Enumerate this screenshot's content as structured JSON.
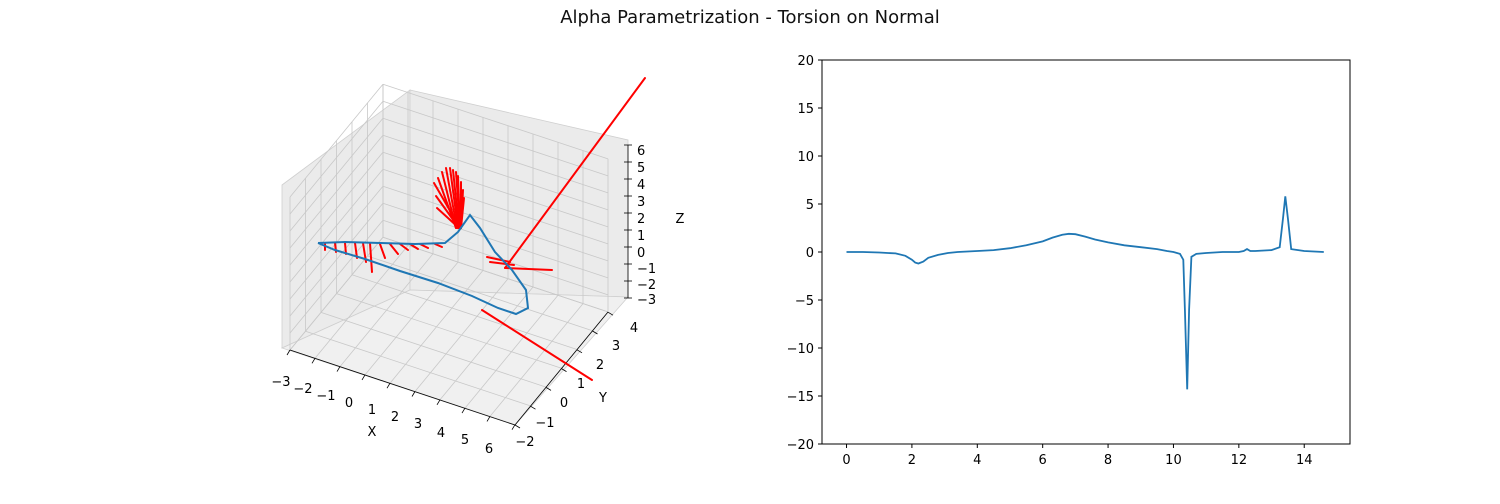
{
  "figure": {
    "title": "Alpha Parametrization - Torsion on Normal"
  },
  "chart_data": [
    {
      "type": "line3d",
      "title": "",
      "xlabel": "X",
      "ylabel": "Y",
      "zlabel": "Z",
      "xlim": [
        -3,
        6
      ],
      "ylim": [
        -2,
        4
      ],
      "zlim": [
        -3,
        6
      ],
      "x_ticks": [
        "−3",
        "−2",
        "−1",
        "0",
        "1",
        "2",
        "3",
        "4",
        "5",
        "6"
      ],
      "y_ticks": [
        "−2",
        "−1",
        "0",
        "1",
        "2",
        "3",
        "4"
      ],
      "z_ticks": [
        "−3",
        "−2",
        "−1",
        "0",
        "1",
        "2",
        "3",
        "4",
        "5",
        "6"
      ],
      "grid": true,
      "series": [
        {
          "kind": "curve",
          "color": "#1f77b4",
          "points": [
            [
              -2.8,
              -0.5,
              0.8
            ],
            [
              -1.5,
              -0.8,
              0.6
            ],
            [
              0.0,
              -0.8,
              0.4
            ],
            [
              1.5,
              -0.5,
              0.5
            ],
            [
              3.0,
              0.2,
              1.0
            ],
            [
              4.0,
              1.2,
              2.2
            ],
            [
              4.2,
              2.4,
              3.2
            ],
            [
              3.4,
              3.0,
              2.4
            ],
            [
              2.2,
              2.8,
              0.5
            ],
            [
              1.2,
              2.0,
              -1.0
            ],
            [
              0.5,
              1.0,
              -1.8
            ],
            [
              -0.3,
              0.2,
              -1.6
            ],
            [
              -1.3,
              -0.3,
              -0.6
            ],
            [
              -2.3,
              -0.5,
              0.4
            ],
            [
              -2.8,
              -0.5,
              0.8
            ]
          ]
        },
        {
          "kind": "normal-vectors",
          "color": "#ff0000",
          "note": "red normal vectors drawn along the curve"
        }
      ]
    },
    {
      "type": "line",
      "title": "",
      "xlabel": "",
      "ylabel": "",
      "xlim": [
        -0.75,
        15.4
      ],
      "ylim": [
        -20,
        20
      ],
      "x_ticks": [
        0,
        2,
        4,
        6,
        8,
        10,
        12,
        14
      ],
      "y_ticks": [
        -20,
        -15,
        -10,
        -5,
        0,
        5,
        10,
        15,
        20
      ],
      "grid": false,
      "series": [
        {
          "color": "#1f77b4",
          "x": [
            0.0,
            0.5,
            1.0,
            1.5,
            1.8,
            2.0,
            2.1,
            2.2,
            2.35,
            2.5,
            2.8,
            3.1,
            3.4,
            4.0,
            4.5,
            5.0,
            5.5,
            6.0,
            6.3,
            6.6,
            6.8,
            7.0,
            7.3,
            7.6,
            8.0,
            8.5,
            9.0,
            9.5,
            9.8,
            10.0,
            10.2,
            10.3,
            10.35,
            10.42,
            10.48,
            10.55,
            10.7,
            11.0,
            11.5,
            12.0,
            12.15,
            12.25,
            12.35,
            12.5,
            13.0,
            13.25,
            13.35,
            13.42,
            13.5,
            13.6,
            14.0,
            14.6
          ],
          "y": [
            0.0,
            0.0,
            -0.05,
            -0.15,
            -0.4,
            -0.8,
            -1.1,
            -1.2,
            -1.0,
            -0.6,
            -0.3,
            -0.1,
            0.0,
            0.1,
            0.2,
            0.4,
            0.7,
            1.1,
            1.5,
            1.8,
            1.9,
            1.85,
            1.6,
            1.3,
            1.0,
            0.7,
            0.5,
            0.3,
            0.1,
            0.0,
            -0.2,
            -0.8,
            -6.0,
            -14.3,
            -6.0,
            -0.5,
            -0.2,
            -0.1,
            0.0,
            0.0,
            0.1,
            0.3,
            0.1,
            0.1,
            0.2,
            0.5,
            3.5,
            5.8,
            3.5,
            0.3,
            0.1,
            0.0
          ]
        }
      ]
    }
  ]
}
